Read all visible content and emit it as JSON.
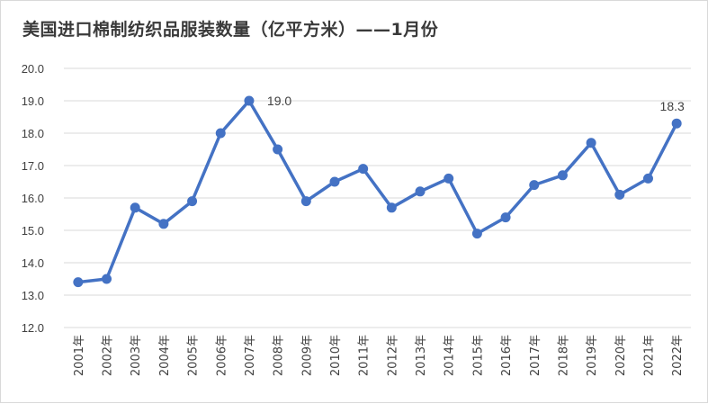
{
  "chart_data": {
    "type": "line",
    "title": "美国进口棉制纺织品服装数量（亿平方米）——1月份",
    "categories": [
      "2001年",
      "2002年",
      "2003年",
      "2004年",
      "2005年",
      "2006年",
      "2007年",
      "2008年",
      "2009年",
      "2010年",
      "2011年",
      "2012年",
      "2013年",
      "2014年",
      "2015年",
      "2016年",
      "2017年",
      "2018年",
      "2019年",
      "2020年",
      "2021年",
      "2022年"
    ],
    "series": [
      {
        "values": [
          13.4,
          13.5,
          15.7,
          15.2,
          15.9,
          18.0,
          19.0,
          17.5,
          15.9,
          16.5,
          16.9,
          15.7,
          16.2,
          16.6,
          14.9,
          15.4,
          16.4,
          16.7,
          17.7,
          16.1,
          16.6,
          18.3
        ]
      }
    ],
    "y_ticks": [
      "12.0",
      "13.0",
      "14.0",
      "15.0",
      "16.0",
      "17.0",
      "18.0",
      "19.0",
      "20.0"
    ],
    "ylim": [
      12.0,
      20.0
    ],
    "xlabel": "",
    "ylabel": "",
    "grid": true,
    "legend": "none",
    "data_labels": [
      {
        "index": 6,
        "text": "19.0"
      },
      {
        "index": 21,
        "text": "18.3"
      }
    ],
    "colors": {
      "line": "#4472c4",
      "grid": "#d9d9d9",
      "text": "#404040"
    }
  }
}
